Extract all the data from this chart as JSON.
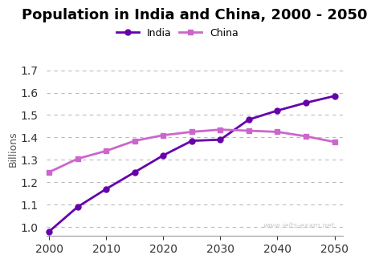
{
  "title": "Population in India and China, 2000 - 2050",
  "ylabel": "Billions",
  "watermark": "www.ielts-exam.net",
  "india": {
    "label": "India",
    "x": [
      2000,
      2005,
      2010,
      2015,
      2020,
      2025,
      2030,
      2035,
      2040,
      2045,
      2050
    ],
    "y": [
      0.98,
      1.09,
      1.17,
      1.245,
      1.32,
      1.385,
      1.39,
      1.48,
      1.52,
      1.555,
      1.585
    ],
    "color": "#6600aa",
    "marker": "o",
    "markersize": 5,
    "linewidth": 2.0
  },
  "china": {
    "label": "China",
    "x": [
      2000,
      2005,
      2010,
      2015,
      2020,
      2025,
      2030,
      2035,
      2040,
      2045,
      2050
    ],
    "y": [
      1.245,
      1.305,
      1.34,
      1.385,
      1.41,
      1.425,
      1.435,
      1.43,
      1.425,
      1.405,
      1.38
    ],
    "color": "#cc66cc",
    "marker": "s",
    "markersize": 5,
    "linewidth": 2.0
  },
  "ylim": [
    0.96,
    1.74
  ],
  "yticks": [
    1.0,
    1.1,
    1.2,
    1.3,
    1.4,
    1.5,
    1.6,
    1.7
  ],
  "xticks": [
    2000,
    2010,
    2020,
    2030,
    2040,
    2050
  ],
  "background_color": "#ffffff",
  "grid_color": "#bbbbbb",
  "title_fontsize": 13,
  "axis_label_fontsize": 9,
  "tick_fontsize": 10,
  "legend_fontsize": 9
}
